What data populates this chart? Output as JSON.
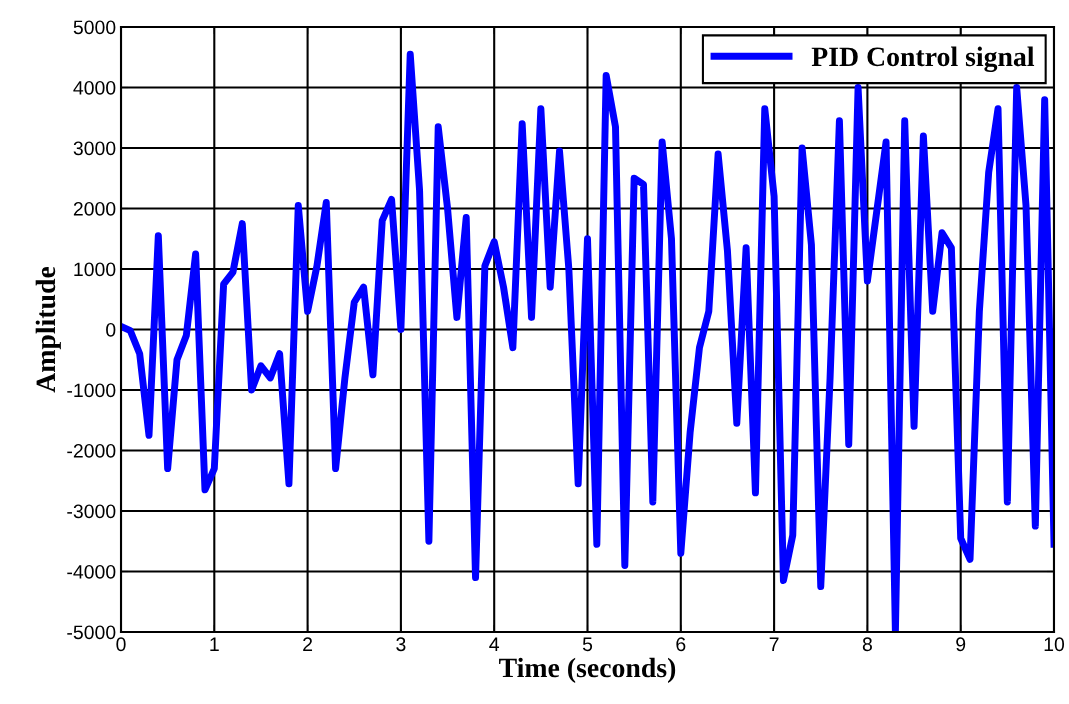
{
  "chart_data": {
    "type": "line",
    "xlabel": "Time (seconds)",
    "ylabel": "Amplitude",
    "x": [
      0.0,
      0.1,
      0.2,
      0.3,
      0.4,
      0.5,
      0.6,
      0.7,
      0.8,
      0.9,
      1.0,
      1.1,
      1.2,
      1.3,
      1.4,
      1.5,
      1.6,
      1.7,
      1.8,
      1.9,
      2.0,
      2.1,
      2.2,
      2.3,
      2.4,
      2.5,
      2.6,
      2.7,
      2.8,
      2.9,
      3.0,
      3.1,
      3.2,
      3.3,
      3.4,
      3.5,
      3.6,
      3.7,
      3.8,
      3.9,
      4.0,
      4.1,
      4.2,
      4.3,
      4.4,
      4.5,
      4.6,
      4.7,
      4.8,
      4.9,
      5.0,
      5.1,
      5.2,
      5.3,
      5.4,
      5.5,
      5.6,
      5.7,
      5.8,
      5.9,
      6.0,
      6.1,
      6.2,
      6.3,
      6.4,
      6.5,
      6.6,
      6.7,
      6.8,
      6.9,
      7.0,
      7.1,
      7.2,
      7.3,
      7.4,
      7.5,
      7.6,
      7.7,
      7.8,
      7.9,
      8.0,
      8.1,
      8.2,
      8.3,
      8.4,
      8.5,
      8.6,
      8.7,
      8.8,
      8.9,
      9.0,
      9.1,
      9.2,
      9.3,
      9.4,
      9.5,
      9.6,
      9.7,
      9.8,
      9.9,
      10.0
    ],
    "series": [
      {
        "name": "PID Control signal",
        "color": "#0000ff",
        "values": [
          50,
          -20,
          -400,
          -1750,
          1550,
          -2300,
          -500,
          -100,
          1250,
          -2650,
          -2300,
          750,
          950,
          1750,
          -1000,
          -600,
          -800,
          -400,
          -2550,
          2050,
          300,
          1050,
          2100,
          -2300,
          -800,
          450,
          700,
          -750,
          1800,
          2150,
          0,
          4550,
          2300,
          -3500,
          3350,
          2000,
          200,
          1850,
          -4100,
          1050,
          1450,
          700,
          -300,
          3400,
          200,
          3650,
          700,
          2950,
          1000,
          -2550,
          1500,
          -3550,
          4200,
          3350,
          -3900,
          2500,
          2400,
          -2850,
          3100,
          1500,
          -3700,
          -1700,
          -300,
          300,
          2900,
          1300,
          -1550,
          1350,
          -2700,
          3650,
          2200,
          -4150,
          -3400,
          3000,
          1400,
          -4250,
          -800,
          3450,
          -1900,
          4000,
          800,
          1950,
          3100,
          -5000,
          3450,
          -1600,
          3200,
          300,
          1600,
          1350,
          -3450,
          -3800,
          300,
          2600,
          3650,
          -2850,
          4000,
          2050,
          -3250,
          3800,
          -3550
        ]
      }
    ],
    "xlim": [
      0,
      10
    ],
    "xticks": [
      0,
      1,
      2,
      3,
      4,
      5,
      6,
      7,
      8,
      9,
      10
    ],
    "ylim": [
      -5000,
      5000
    ],
    "yticks": [
      -5000,
      -4000,
      -3000,
      -2000,
      -1000,
      0,
      1000,
      2000,
      3000,
      4000,
      5000
    ],
    "grid": true,
    "legend": "top right",
    "line_style": "solid",
    "marker": "none"
  }
}
